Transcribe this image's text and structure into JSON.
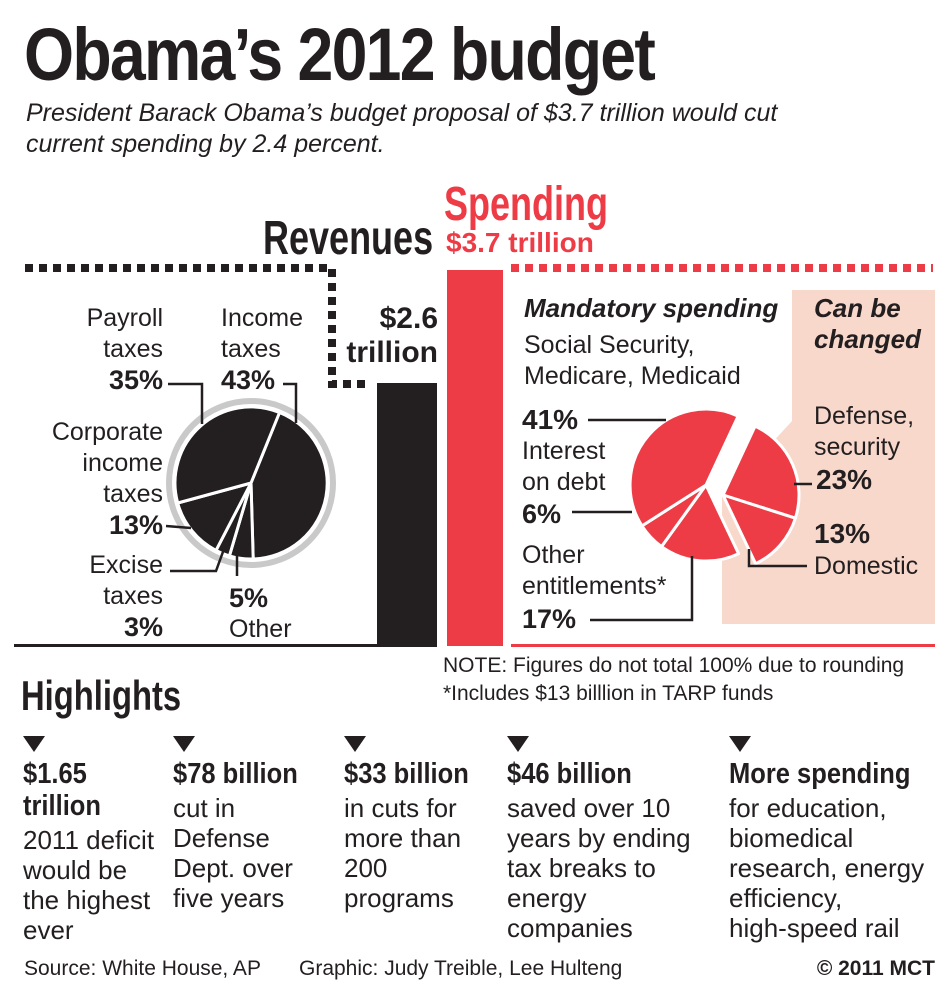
{
  "title": "Obama’s 2012 budget",
  "subtitle": "President Barack Obama’s budget proposal of $3.7 trillion would cut\ncurrent spending by 2.4 percent.",
  "colors": {
    "red": "#ed3c46",
    "pink": "#f9d8cc",
    "black": "#231f20",
    "gray_ring": "#c9c9c9"
  },
  "revenues": {
    "heading": "Revenues",
    "amount_line1": "$2.6",
    "amount_line2": "trillion",
    "labels": {
      "payroll": {
        "name": "Payroll\ntaxes",
        "pct": "35%"
      },
      "income": {
        "name": "Income\ntaxes",
        "pct": "43%"
      },
      "corporate": {
        "name": "Corporate\nincome\ntaxes",
        "pct": "13%"
      },
      "excise": {
        "name": "Excise\ntaxes",
        "pct": "3%"
      },
      "other": {
        "pct": "5%",
        "name": "Other"
      }
    }
  },
  "spending": {
    "heading": "Spending",
    "amount": "$3.7 trillion",
    "mandatory_label": "Mandatory spending",
    "can_be_changed_label": "Can be\nchanged",
    "labels": {
      "socsec": {
        "name": "Social Security,\nMedicare, Medicaid",
        "pct": "41%"
      },
      "interest": {
        "name": "Interest\non debt",
        "pct": "6%"
      },
      "other_entitlements": {
        "name": "Other\nentitlements*",
        "pct": "17%"
      },
      "defense": {
        "name": "Defense,\nsecurity",
        "pct": "23%"
      },
      "domestic": {
        "pct": "13%",
        "name": "Domestic"
      }
    }
  },
  "note_line1": "NOTE: Figures do not total 100% due to rounding",
  "note_line2": "*Includes $13 billlion in TARP funds",
  "highlights": {
    "heading": "Highlights",
    "items": [
      {
        "lead": "$1.65\ntrillion",
        "body": "2011 deficit\nwould be\nthe highest\never"
      },
      {
        "lead": "$78 billion",
        "body": "cut in\nDefense\nDept. over\nfive years"
      },
      {
        "lead": "$33 billion",
        "body": "in cuts for\nmore than\n200\nprograms"
      },
      {
        "lead": "$46 billion",
        "body": "saved over 10\nyears by ending\ntax breaks to\nenergy\ncompanies"
      },
      {
        "lead": "More spending",
        "body": "for education,\nbiomedical\nresearch, energy\nefficiency,\nhigh-speed rail"
      }
    ]
  },
  "footer": {
    "source": "Source: White House, AP",
    "credit": "Graphic: Judy Treible, Lee Hulteng",
    "copyright": "© 2011 MCT"
  },
  "chart_data": [
    {
      "type": "pie",
      "title": "Revenues",
      "total_label": "$2.6 trillion",
      "units": "percent of revenues",
      "slices": [
        {
          "label": "Income taxes",
          "pct": 43
        },
        {
          "label": "Other",
          "pct": 5
        },
        {
          "label": "Excise taxes",
          "pct": 3
        },
        {
          "label": "Corporate income taxes",
          "pct": 13
        },
        {
          "label": "Payroll taxes",
          "pct": 35
        }
      ]
    },
    {
      "type": "pie",
      "title": "Spending",
      "total_label": "$3.7 trillion",
      "units": "percent of spending",
      "groups": {
        "exploded": "Can be changed",
        "main": "Mandatory spending"
      },
      "slices": [
        {
          "label": "Defense, security",
          "pct": 23,
          "exploded": true
        },
        {
          "label": "Domestic",
          "pct": 13,
          "exploded": true
        },
        {
          "label": "Other entitlements (includes $13 billion in TARP funds)",
          "pct": 17
        },
        {
          "label": "Interest on debt",
          "pct": 6
        },
        {
          "label": "Social Security, Medicare, Medicaid",
          "pct": 41
        }
      ]
    },
    {
      "type": "bar",
      "categories": [
        "Revenues",
        "Spending"
      ],
      "values": [
        2.6,
        3.7
      ],
      "units": "trillions of dollars",
      "labels": [
        "$2.6 trillion",
        "$3.7 trillion"
      ]
    }
  ]
}
